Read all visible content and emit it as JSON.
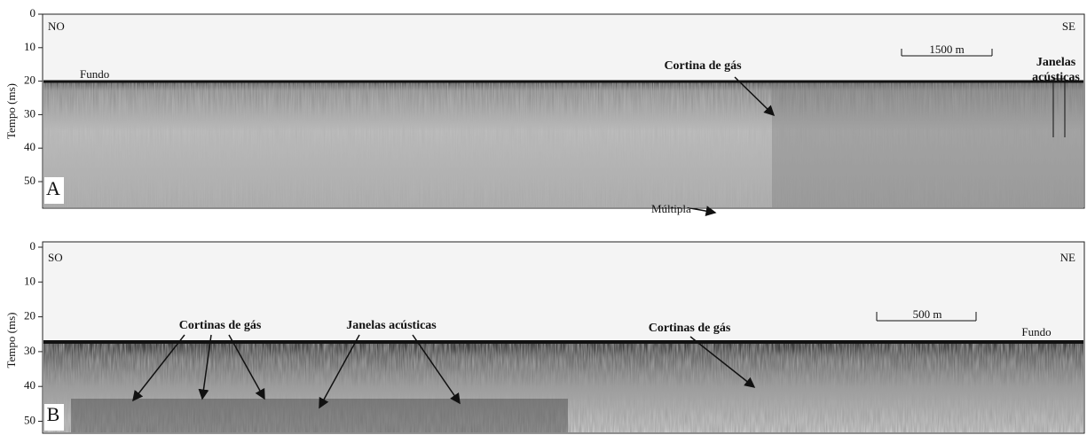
{
  "panels": [
    {
      "label": "A",
      "left_direction": "NO",
      "right_direction": "SE",
      "y_axis_label": "Tempo (ms)",
      "yticks": [
        0,
        10,
        20,
        30,
        40,
        50
      ],
      "scale_bar": "1500 m",
      "annotations": [
        "Fundo",
        "Cortina de gás",
        "Janelas",
        "acústicas",
        "Múltipla"
      ]
    },
    {
      "label": "B",
      "left_direction": "SO",
      "right_direction": "NE",
      "y_axis_label": "Tempo (ms)",
      "yticks": [
        0,
        10,
        20,
        30,
        40,
        50
      ],
      "scale_bar": "500 m",
      "annotations": [
        "Cortinas de gás",
        "Janelas acústicas",
        "Cortinas de gás",
        "Fundo"
      ]
    }
  ]
}
